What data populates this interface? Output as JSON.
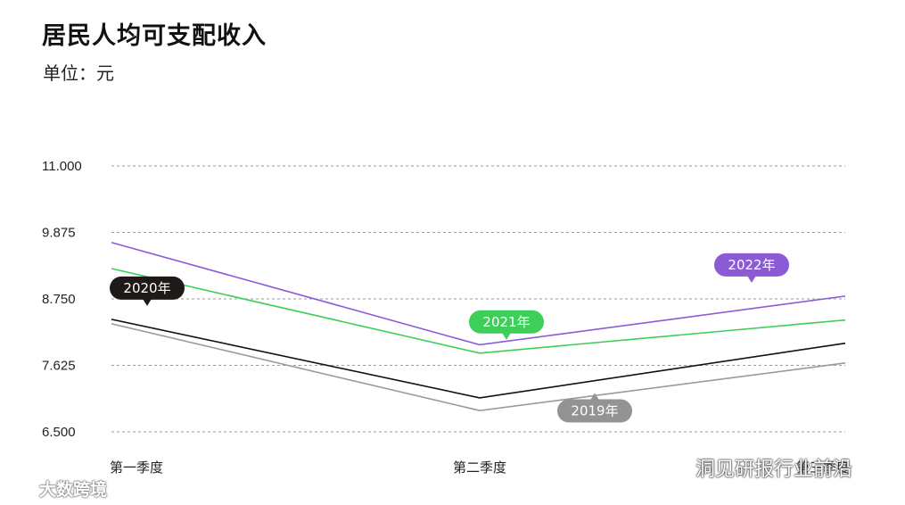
{
  "title": "居民人均可支配收入",
  "unit_label": "单位：元",
  "watermark_left": "大数跨境",
  "watermark_right": "洞见研报行业前沿",
  "chart_data": {
    "type": "line",
    "categories": [
      "第一季度",
      "第二季度",
      "第三季度"
    ],
    "y_ticks": [
      "11.000",
      "9.875",
      "8.750",
      "7.625",
      "6.500"
    ],
    "ylim": [
      6500,
      11000
    ],
    "grid": true,
    "series": [
      {
        "name": "2022年",
        "color": "#8b5bd6",
        "label_color": "#8b5bd6",
        "label_at": 2,
        "label_side": "above",
        "values": [
          9705,
          7973,
          8797
        ]
      },
      {
        "name": "2021年",
        "color": "#3ecf5a",
        "label_color": "#3ecf5a",
        "label_at": 1,
        "label_side": "above",
        "values": [
          9263,
          7832,
          8393
        ]
      },
      {
        "name": "2020年",
        "color": "#111111",
        "label_color": "#1f1a17",
        "label_at": 0,
        "label_side": "above",
        "values": [
          8404,
          7075,
          8000
        ]
      },
      {
        "name": "2019年",
        "color": "#9a9a9a",
        "label_color": "#939393",
        "label_at": 1.5,
        "label_side": "below",
        "values": [
          8330,
          6860,
          7665
        ]
      }
    ]
  }
}
